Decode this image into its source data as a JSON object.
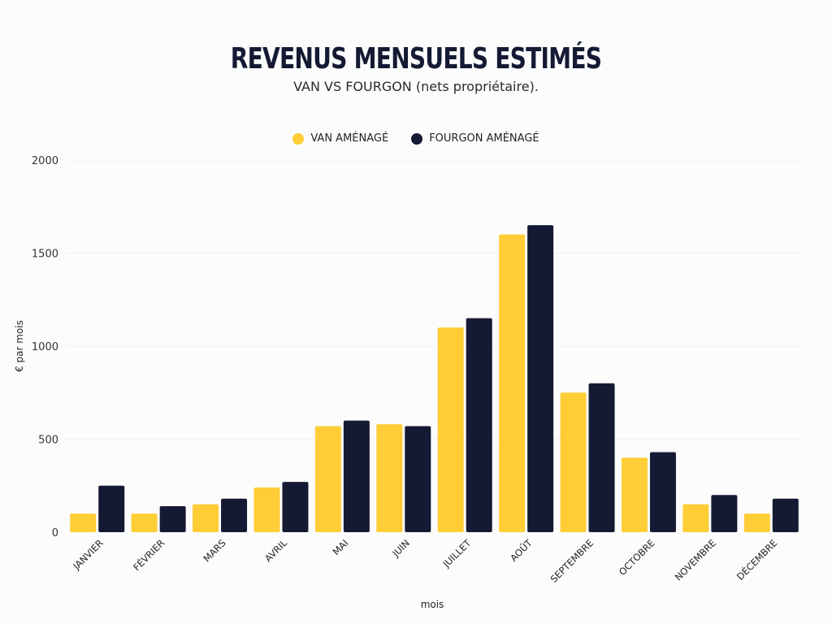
{
  "chart_data": {
    "type": "bar",
    "title": "REVENUS MENSUELS ESTIMÉS",
    "subtitle": "VAN VS FOURGON (nets propriétaire).",
    "xlabel": "mois",
    "ylabel": "€ par mois",
    "ylim": [
      0,
      2000
    ],
    "yticks": [
      "0",
      "500",
      "1000",
      "1500",
      "2000"
    ],
    "ytick_values": [
      0,
      500,
      1000,
      1500,
      2000
    ],
    "grid": true,
    "legend_position": "top-center",
    "categories": [
      "JANVIER",
      "FÉVRIER",
      "MARS",
      "AVRIL",
      "MAI",
      "JUIN",
      "JUILLET",
      "AOÛT",
      "SEPTEMBRE",
      "OCTOBRE",
      "NOVEMBRE",
      "DÉCEMBRE"
    ],
    "series": [
      {
        "name": "VAN AMÉNAGÉ",
        "color": "#ffcd36",
        "values": [
          100,
          100,
          150,
          240,
          570,
          580,
          1100,
          1600,
          750,
          400,
          150,
          100
        ]
      },
      {
        "name": "FOURGON AMÉNAGÉ",
        "color": "#141a33",
        "values": [
          250,
          140,
          180,
          270,
          600,
          570,
          1150,
          1650,
          800,
          430,
          200,
          180
        ]
      }
    ]
  }
}
